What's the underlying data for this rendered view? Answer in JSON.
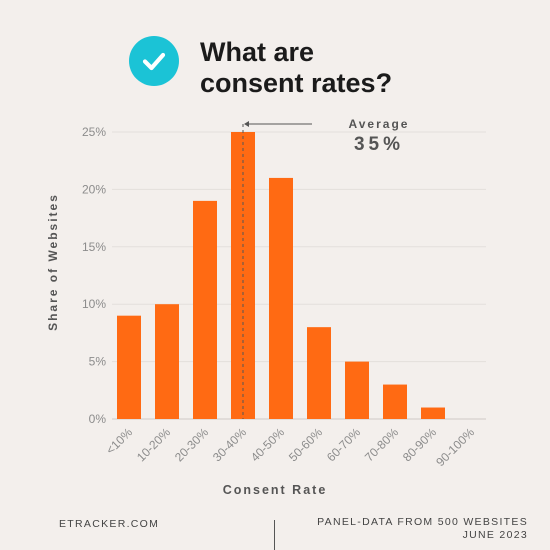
{
  "header": {
    "icon": "check-circle-icon",
    "title_line1": "What are",
    "title_line2": "consent rates?"
  },
  "chart_data": {
    "type": "bar",
    "categories": [
      "<10%",
      "10-20%",
      "20-30%",
      "30-40%",
      "40-50%",
      "50-60%",
      "60-70%",
      "70-80%",
      "80-90%",
      "90-100%"
    ],
    "values": [
      9,
      10,
      19,
      25,
      21,
      8,
      5,
      3,
      1,
      0
    ],
    "xlabel": "Consent Rate",
    "ylabel": "Share of Websites",
    "ylim": [
      0,
      25
    ],
    "yticks": [
      "0%",
      "5%",
      "10%",
      "15%",
      "20%",
      "25%"
    ],
    "ytick_values": [
      0,
      5,
      10,
      15,
      20,
      25
    ],
    "grid": true,
    "bar_color": "#ff6a13",
    "annotation": {
      "label": "Average",
      "value_text": "35%",
      "x_value": 35
    }
  },
  "footer": {
    "left": "ETRACKER.COM",
    "right_line1": "PANEL-DATA FROM 500 WEBSITES",
    "right_line2": "JUNE 2023"
  },
  "colors": {
    "background": "#f3efec",
    "accent": "#1bc3d6",
    "bar": "#ff6a13"
  }
}
